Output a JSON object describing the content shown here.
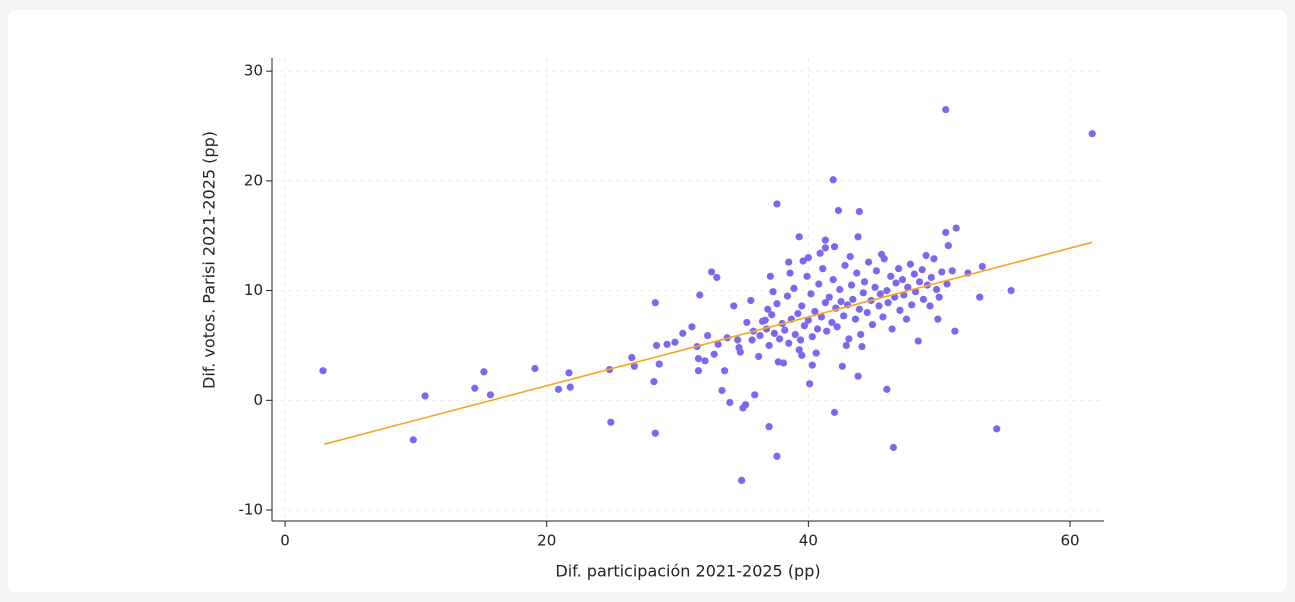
{
  "chart_data": {
    "type": "scatter",
    "xlabel": "Dif. participación 2021-2025 (pp)",
    "ylabel": "Dif. votos. Parisi 2021-2025 (pp)",
    "xlim": [
      -1,
      62.6
    ],
    "ylim": [
      -11,
      31.2
    ],
    "xticks": [
      0,
      20,
      40,
      60
    ],
    "yticks": [
      -10,
      0,
      10,
      20,
      30
    ],
    "grid": true,
    "series": [
      {
        "mode": "markers",
        "color": "#7b68ee",
        "x": [
          2.9,
          9.8,
          10.7,
          14.5,
          15.2,
          15.7,
          19.1,
          20.9,
          21.7,
          21.8,
          24.8,
          24.9,
          26.5,
          26.7,
          28.3,
          28.2,
          28.3,
          28.4,
          28.6,
          29.2,
          29.8,
          30.4,
          31.1,
          31.5,
          31.6,
          31.6,
          31.7,
          32.1,
          32.6,
          33.0,
          33.1,
          33.4,
          33.6,
          34.0,
          34.3,
          34.6,
          34.8,
          34.9,
          35.0,
          35.2,
          35.6,
          35.7,
          35.9,
          36.2,
          36.7,
          37.0,
          37.6,
          37.6,
          37.7,
          37.1,
          38.5,
          39.3,
          39.5,
          40.0,
          40.1,
          40.3,
          41.3,
          41.3,
          41.9,
          42.0,
          42.3,
          42.6,
          43.8,
          43.9,
          43.8,
          46.0,
          46.5,
          50.5,
          51.3,
          50.5,
          51.2,
          52.2,
          53.1,
          53.3,
          54.4,
          55.5,
          61.7,
          49.9,
          50.7,
          36.5,
          36.8,
          37.0,
          37.2,
          37.4,
          37.6,
          37.8,
          38.0,
          38.2,
          38.4,
          38.5,
          38.7,
          38.9,
          39.0,
          39.2,
          39.4,
          39.5,
          39.7,
          39.9,
          40.0,
          40.2,
          40.3,
          40.5,
          40.7,
          40.8,
          41.0,
          41.1,
          41.3,
          41.4,
          41.6,
          41.8,
          41.9,
          42.1,
          42.2,
          42.4,
          42.5,
          42.7,
          42.8,
          43.0,
          43.1,
          43.3,
          43.4,
          43.6,
          43.7,
          43.9,
          44.0,
          44.2,
          44.3,
          44.5,
          44.6,
          44.8,
          44.9,
          45.1,
          45.2,
          45.4,
          45.5,
          45.7,
          45.8,
          46.0,
          46.1,
          46.3,
          46.4,
          46.6,
          46.7,
          46.9,
          47.0,
          47.2,
          47.3,
          47.5,
          47.6,
          47.8,
          47.9,
          48.1,
          48.2,
          48.4,
          48.5,
          48.7,
          48.8,
          49.0,
          49.1,
          49.3,
          49.4,
          49.6,
          49.8,
          50.0,
          50.2,
          50.6,
          51.0,
          39.3,
          40.6,
          38.1,
          42.9,
          44.1,
          37.3,
          36.9,
          40.9,
          42.0,
          43.2,
          45.6,
          39.6,
          38.6,
          35.8,
          35.3,
          34.7,
          36.3,
          33.8,
          32.8,
          32.3
        ],
        "y": [
          2.7,
          -3.6,
          0.4,
          1.1,
          2.6,
          0.5,
          2.9,
          1.0,
          2.5,
          1.2,
          2.8,
          -2.0,
          3.9,
          3.1,
          8.9,
          1.7,
          -3.0,
          5.0,
          3.3,
          5.1,
          5.3,
          6.1,
          6.7,
          4.9,
          3.8,
          2.7,
          9.6,
          3.6,
          11.7,
          11.2,
          5.1,
          0.9,
          2.7,
          -0.2,
          8.6,
          5.5,
          4.4,
          -7.3,
          -0.7,
          -0.4,
          9.1,
          5.5,
          0.5,
          4.0,
          7.3,
          -2.4,
          17.9,
          -5.1,
          3.5,
          11.3,
          12.6,
          14.9,
          4.1,
          13.0,
          1.5,
          3.2,
          14.6,
          13.9,
          20.1,
          -1.1,
          17.3,
          3.1,
          14.9,
          17.2,
          2.2,
          1.0,
          -4.3,
          26.5,
          15.7,
          15.3,
          6.3,
          11.6,
          9.4,
          12.2,
          -2.6,
          10.0,
          24.3,
          7.4,
          14.1,
          7.2,
          6.5,
          5.0,
          7.8,
          6.1,
          8.8,
          5.6,
          7.0,
          6.4,
          9.5,
          5.2,
          7.4,
          10.2,
          6.0,
          7.9,
          5.5,
          8.6,
          6.8,
          11.3,
          7.3,
          9.7,
          5.8,
          8.1,
          6.5,
          10.6,
          7.6,
          12.0,
          8.9,
          6.3,
          9.4,
          7.1,
          11.0,
          8.4,
          6.7,
          10.1,
          9.0,
          7.7,
          12.3,
          8.7,
          5.6,
          10.5,
          9.2,
          7.4,
          11.6,
          8.3,
          6.0,
          9.8,
          10.8,
          8.0,
          12.6,
          9.1,
          6.9,
          10.3,
          11.8,
          8.6,
          9.7,
          7.6,
          12.9,
          10.0,
          8.9,
          11.3,
          6.5,
          9.4,
          10.7,
          12.0,
          8.2,
          11.0,
          9.6,
          7.4,
          10.3,
          12.4,
          8.7,
          11.5,
          9.9,
          5.4,
          10.8,
          11.9,
          9.2,
          13.2,
          10.5,
          8.6,
          11.2,
          12.9,
          10.1,
          9.4,
          11.7,
          10.6,
          11.8,
          4.6,
          4.3,
          3.4,
          5.0,
          4.9,
          9.9,
          8.3,
          13.4,
          14.0,
          13.1,
          13.3,
          12.7,
          11.6,
          6.3,
          7.1,
          4.8,
          5.9,
          5.7,
          4.2,
          5.9
        ]
      },
      {
        "mode": "line",
        "color": "#f5a623",
        "x": [
          3.0,
          61.7
        ],
        "y": [
          -4.0,
          14.4
        ]
      }
    ]
  }
}
